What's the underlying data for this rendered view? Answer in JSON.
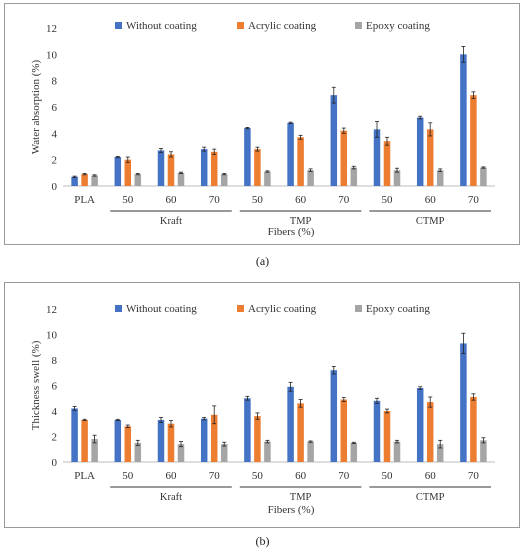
{
  "legend": [
    {
      "name": "Without coating",
      "color": "#4472C4"
    },
    {
      "name": "Acrylic coating",
      "color": "#ED7D31"
    },
    {
      "name": "Epoxy coating",
      "color": "#A5A5A5"
    }
  ],
  "captions": [
    "(a)",
    "(b)"
  ],
  "chart_data": [
    {
      "type": "bar",
      "xlabel": "Fibers (%)",
      "ylabel": "Water absorption (%)",
      "ylim": [
        0,
        12
      ],
      "yticks": [
        "0",
        "2",
        "4",
        "6",
        "8",
        "10",
        "12"
      ],
      "grid": false,
      "legend_position": "top",
      "categories": [
        "PLA",
        "50",
        "60",
        "70",
        "50",
        "60",
        "70",
        "50",
        "60",
        "70"
      ],
      "groups": [
        {
          "label": "Kraft",
          "from": 1,
          "to": 3
        },
        {
          "label": "TMP",
          "from": 4,
          "to": 6
        },
        {
          "label": "CTMP",
          "from": 7,
          "to": 9
        }
      ],
      "series": [
        {
          "name": "Without coating",
          "values": [
            0.7,
            2.2,
            2.7,
            2.8,
            4.4,
            4.8,
            6.9,
            4.3,
            5.2,
            10.0
          ],
          "errors": [
            0.05,
            0.05,
            0.15,
            0.15,
            0.05,
            0.05,
            0.6,
            0.6,
            0.1,
            0.6
          ]
        },
        {
          "name": "Acrylic coating",
          "values": [
            0.9,
            2.0,
            2.4,
            2.6,
            2.8,
            3.7,
            4.2,
            3.4,
            4.3,
            6.9
          ],
          "errors": [
            0.05,
            0.2,
            0.2,
            0.2,
            0.15,
            0.15,
            0.2,
            0.3,
            0.5,
            0.25
          ]
        },
        {
          "name": "Epoxy coating",
          "values": [
            0.8,
            0.9,
            1.0,
            0.9,
            1.1,
            1.2,
            1.4,
            1.2,
            1.2,
            1.4
          ],
          "errors": [
            0.05,
            0.05,
            0.05,
            0.05,
            0.05,
            0.1,
            0.1,
            0.15,
            0.1,
            0.05
          ]
        }
      ]
    },
    {
      "type": "bar",
      "xlabel": "Fibers (%)",
      "ylabel": "Thickness swell (%)",
      "ylim": [
        0,
        12
      ],
      "yticks": [
        "0",
        "2",
        "4",
        "6",
        "8",
        "10",
        "12"
      ],
      "grid": false,
      "legend_position": "top",
      "categories": [
        "PLA",
        "50",
        "60",
        "70",
        "50",
        "60",
        "70",
        "50",
        "60",
        "70"
      ],
      "groups": [
        {
          "label": "Kraft",
          "from": 1,
          "to": 3
        },
        {
          "label": "TMP",
          "from": 4,
          "to": 6
        },
        {
          "label": "CTMP",
          "from": 7,
          "to": 9
        }
      ],
      "series": [
        {
          "name": "Without coating",
          "values": [
            4.2,
            3.3,
            3.3,
            3.4,
            5.0,
            5.9,
            7.2,
            4.8,
            5.8,
            9.3
          ],
          "errors": [
            0.15,
            0.05,
            0.2,
            0.1,
            0.15,
            0.35,
            0.3,
            0.2,
            0.1,
            0.8
          ]
        },
        {
          "name": "Acrylic coating",
          "values": [
            3.3,
            2.8,
            3.0,
            3.7,
            3.6,
            4.6,
            4.9,
            4.0,
            4.7,
            5.1
          ],
          "errors": [
            0.05,
            0.1,
            0.25,
            0.7,
            0.25,
            0.3,
            0.15,
            0.15,
            0.4,
            0.25
          ]
        },
        {
          "name": "Epoxy coating",
          "values": [
            1.8,
            1.5,
            1.4,
            1.4,
            1.6,
            1.6,
            1.5,
            1.6,
            1.4,
            1.7
          ],
          "errors": [
            0.3,
            0.2,
            0.2,
            0.15,
            0.1,
            0.05,
            0.05,
            0.1,
            0.3,
            0.2
          ]
        }
      ]
    }
  ]
}
